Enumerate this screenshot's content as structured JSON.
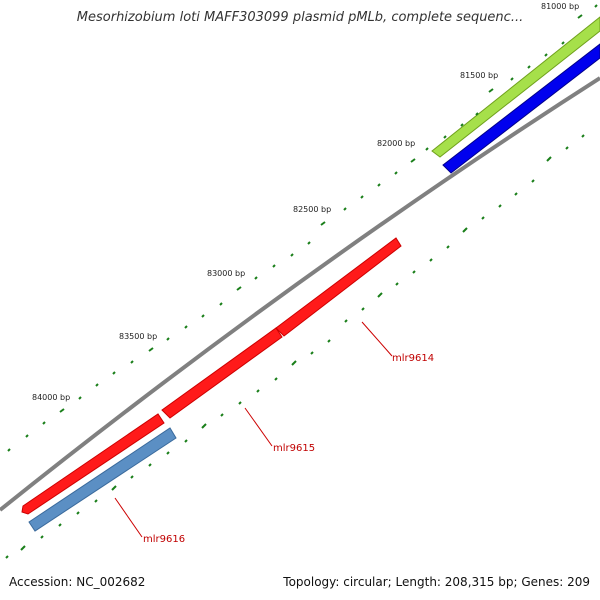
{
  "title": "Mesorhizobium loti MAFF303099 plasmid pMLb, complete sequenc...",
  "footer": {
    "accession": "Accession: NC_002682",
    "summary": "Topology: circular; Length: 208,315 bp; Genes: 209"
  },
  "ticks": [
    "81000 bp",
    "81500 bp",
    "82000 bp",
    "82500 bp",
    "83000 bp",
    "83500 bp",
    "84000 bp"
  ],
  "genes": [
    {
      "name": "mlr9614",
      "color": "#ff0000"
    },
    {
      "name": "mlr9615",
      "color": "#ff0000"
    },
    {
      "name": "mlr9616",
      "color": "#4682b4"
    }
  ],
  "colors": {
    "backbone": "#888888",
    "gc_track": "#9acd32",
    "skew_track": "#0000ff",
    "tick_marks": "#1a7f1a",
    "cds_forward": "#ff0000",
    "cds_reverse": "#4682b4"
  }
}
